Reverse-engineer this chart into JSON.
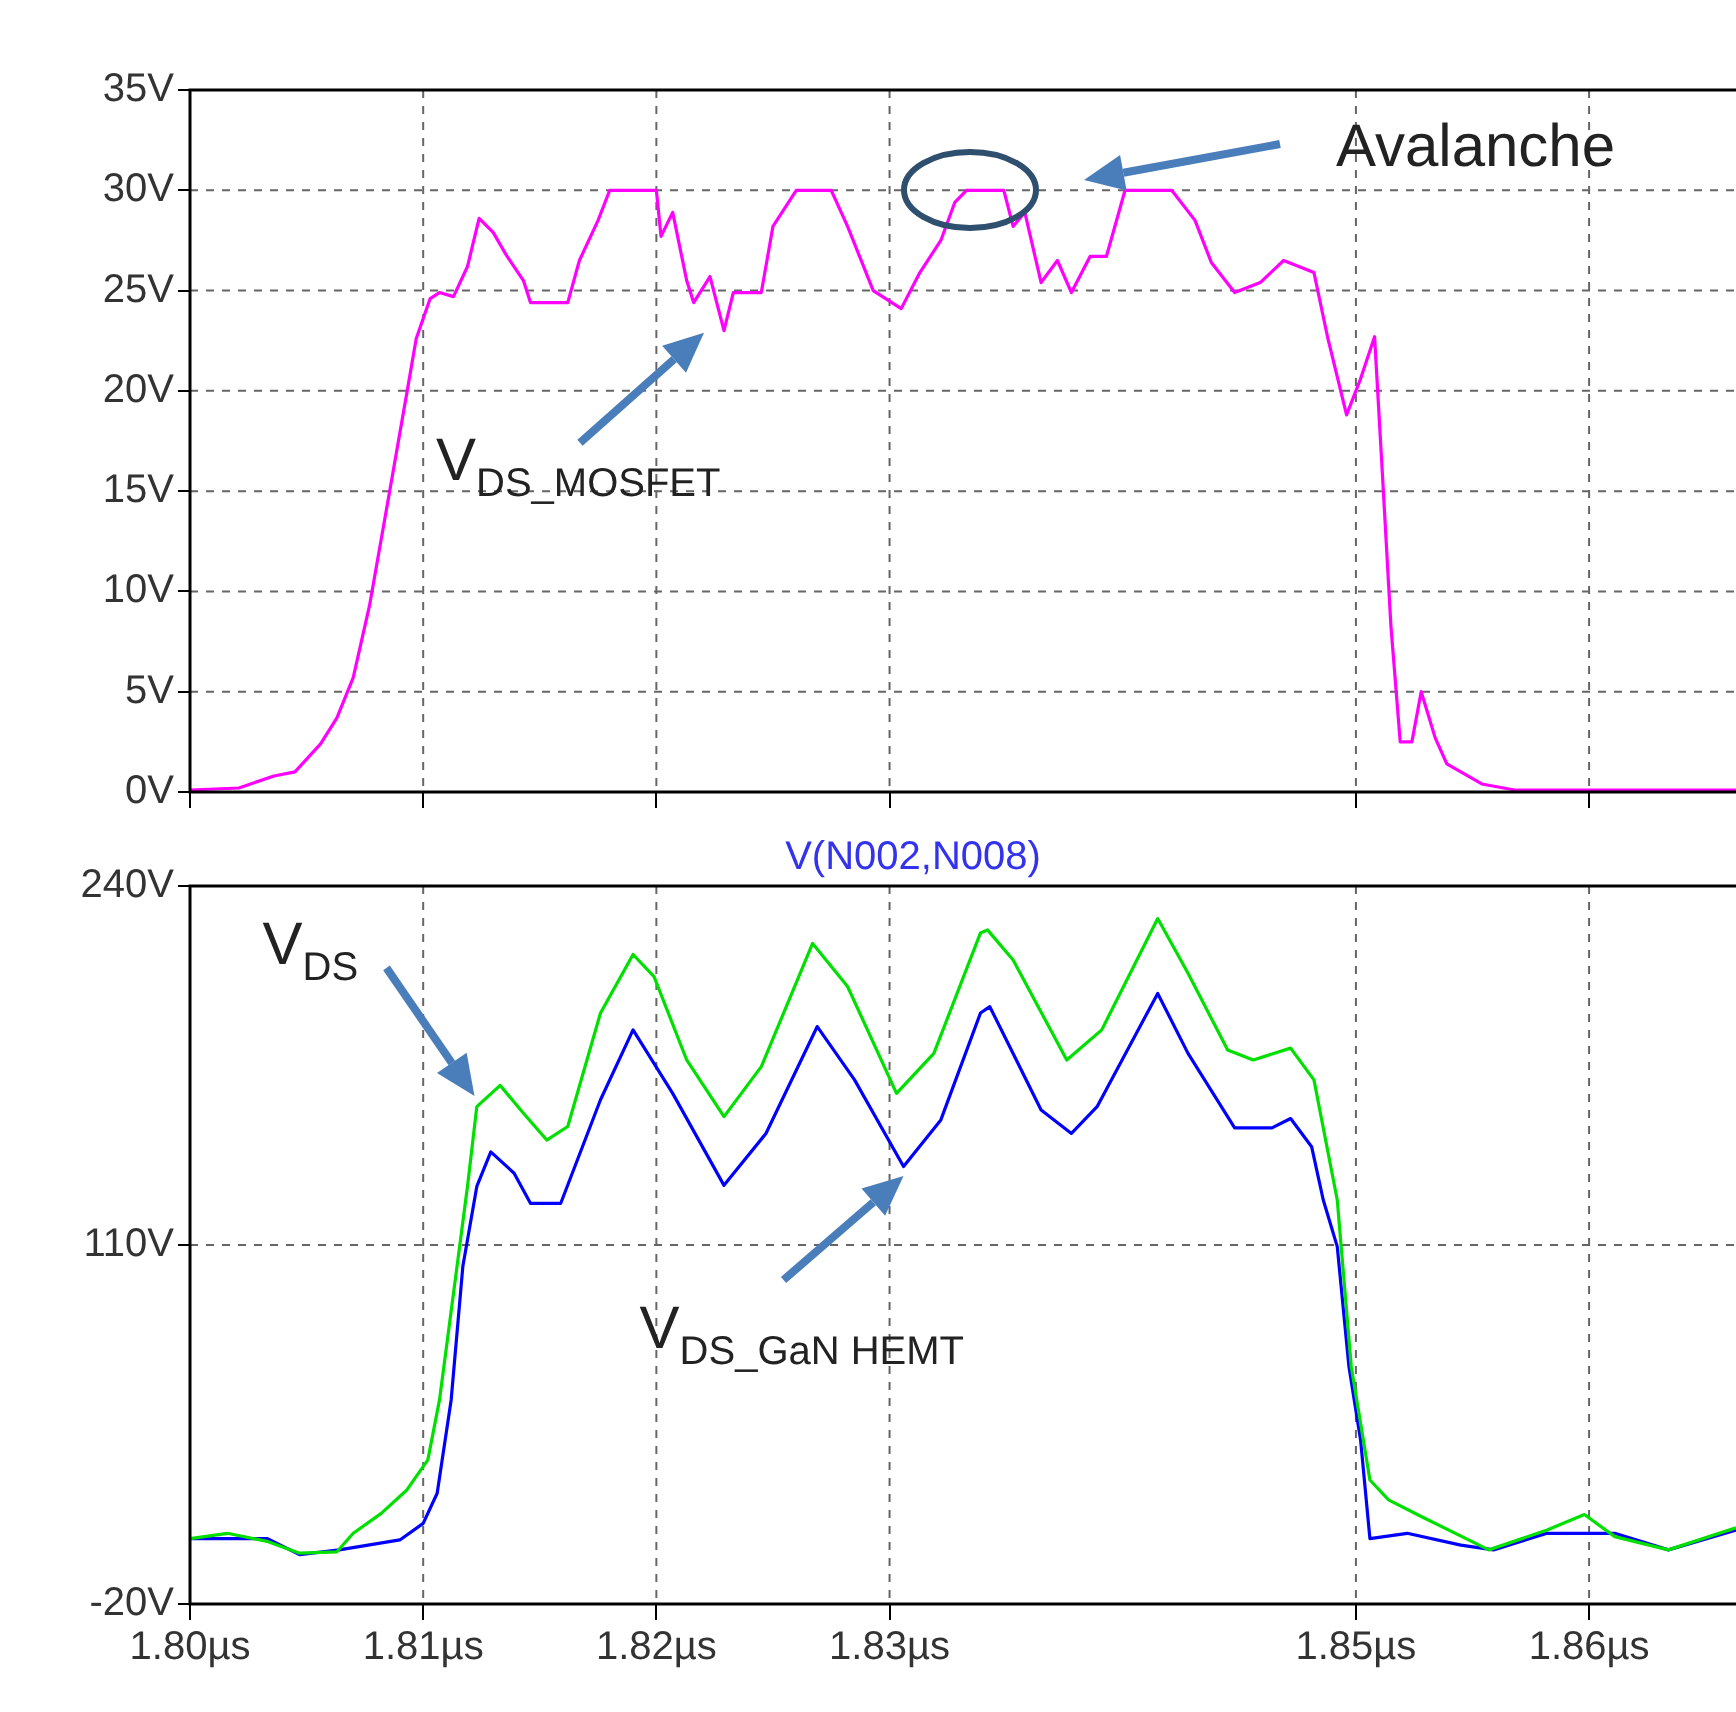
{
  "chart_data": [
    {
      "type": "line",
      "tick_labels": "y",
      "grid": true,
      "xlim": [
        1.8,
        1.8663
      ],
      "xticks": [
        {
          "value": 1.8,
          "label": null
        },
        {
          "value": 1.81,
          "label": null
        },
        {
          "value": 1.82,
          "label": null
        },
        {
          "value": 1.83,
          "label": null
        },
        {
          "value": 1.85,
          "label": null
        },
        {
          "value": 1.86,
          "label": null
        }
      ],
      "ylim": [
        0,
        35
      ],
      "yticks": [
        {
          "value": 0,
          "label": "0V"
        },
        {
          "value": 5,
          "label": "5V"
        },
        {
          "value": 10,
          "label": "10V"
        },
        {
          "value": 15,
          "label": "15V"
        },
        {
          "value": 20,
          "label": "20V"
        },
        {
          "value": 25,
          "label": "25V"
        },
        {
          "value": 30,
          "label": "30V"
        },
        {
          "value": 35,
          "label": "35V"
        }
      ],
      "series": [
        {
          "color": "#ff00ff",
          "x": [
            1.8,
            1.8021,
            1.8036,
            1.8045,
            1.8056,
            1.8063,
            1.807,
            1.8077,
            1.8082,
            1.8087,
            1.8093,
            1.8097,
            1.8103,
            1.8107,
            1.8113,
            1.8119,
            1.8124,
            1.813,
            1.8136,
            1.8143,
            1.8146,
            1.8162,
            1.8167,
            1.8175,
            1.818,
            1.82,
            1.8202,
            1.8207,
            1.8213,
            1.8216,
            1.8223,
            1.8229,
            1.8233,
            1.8245,
            1.825,
            1.826,
            1.8275,
            1.8282,
            1.8293,
            1.8305,
            1.8313,
            1.8322,
            1.8328,
            1.8333,
            1.8349,
            1.8353,
            1.8358,
            1.8365,
            1.8372,
            1.8378,
            1.8386,
            1.8393,
            1.8401,
            1.8421,
            1.8431,
            1.8438,
            1.8448,
            1.8459,
            1.8469,
            1.8482,
            1.8488,
            1.8496,
            1.8502,
            1.8508,
            1.8511,
            1.8515,
            1.8519,
            1.8524,
            1.8528,
            1.8534,
            1.8539,
            1.8554,
            1.8568,
            1.8663
          ],
          "values": [
            0.1,
            0.2,
            0.8,
            1.0,
            2.4,
            3.7,
            5.7,
            9.3,
            12.6,
            15.9,
            19.9,
            22.6,
            24.6,
            24.9,
            24.7,
            26.2,
            28.6,
            27.9,
            26.7,
            25.5,
            24.4,
            24.4,
            26.5,
            28.5,
            30.0,
            30.0,
            27.7,
            28.9,
            25.5,
            24.4,
            25.7,
            23.0,
            24.9,
            24.9,
            28.2,
            30.0,
            30.0,
            28.2,
            25.0,
            24.1,
            25.9,
            27.5,
            29.4,
            30.0,
            30.0,
            28.2,
            28.9,
            25.4,
            26.5,
            24.9,
            26.7,
            26.7,
            30.0,
            30.0,
            28.5,
            26.4,
            24.9,
            25.4,
            26.5,
            25.9,
            22.6,
            18.8,
            20.6,
            22.7,
            16.6,
            8.3,
            2.5,
            2.5,
            5.0,
            2.7,
            1.4,
            0.4,
            0.1,
            0.1
          ]
        }
      ],
      "annotations": [
        {
          "text": "V$_{DS_MOSFET}$",
          "x": 1.8229,
          "y": 23.0
        },
        "Avalanche"
      ]
    },
    {
      "type": "line",
      "title": "V(N002,N008)",
      "grid": true,
      "xlim": [
        1.8,
        1.8663
      ],
      "xticks": [
        {
          "value": 1.8,
          "label": "1.80µs"
        },
        {
          "value": 1.81,
          "label": "1.81µs"
        },
        {
          "value": 1.82,
          "label": "1.82µs"
        },
        {
          "value": 1.83,
          "label": "1.83µs"
        },
        {
          "value": 1.85,
          "label": "1.85µs"
        },
        {
          "value": 1.86,
          "label": "1.86µs"
        }
      ],
      "ylim": [
        -20,
        240
      ],
      "yticks": [
        {
          "value": -20,
          "label": "-20V"
        },
        {
          "value": 110,
          "label": "110V"
        },
        {
          "value": 240,
          "label": "240V"
        }
      ],
      "series": [
        {
          "color": "#00e000",
          "x": [
            1.8,
            1.8016,
            1.8033,
            1.8047,
            1.8063,
            1.807,
            1.8082,
            1.8093,
            1.8102,
            1.8107,
            1.8113,
            1.8119,
            1.8123,
            1.8133,
            1.8143,
            1.8153,
            1.8162,
            1.8176,
            1.819,
            1.8199,
            1.8213,
            1.8229,
            1.8245,
            1.8267,
            1.8282,
            1.8303,
            1.8319,
            1.8339,
            1.8342,
            1.8353,
            1.8376,
            1.8391,
            1.8415,
            1.8428,
            1.8445,
            1.8456,
            1.8472,
            1.8482,
            1.8492,
            1.8498,
            1.8506,
            1.8514,
            1.8528,
            1.8557,
            1.8582,
            1.8598,
            1.8611,
            1.8634,
            1.8663
          ],
          "values": [
            3.7,
            5.6,
            2.7,
            -1.6,
            -1.1,
            5.6,
            12.8,
            21.3,
            32.2,
            53.9,
            92.5,
            131.2,
            160.1,
            167.8,
            157.7,
            148.0,
            152.9,
            193.9,
            215.2,
            207.2,
            177.0,
            156.5,
            174.6,
            219.2,
            203.6,
            164.9,
            179.4,
            223.0,
            224.1,
            213.2,
            177.0,
            187.9,
            228.2,
            208.4,
            180.6,
            177.0,
            181.3,
            169.8,
            126.3,
            66.0,
            24.9,
            17.7,
            11.7,
            -0.4,
            6.8,
            12.4,
            4.4,
            -0.4,
            7.6
          ]
        },
        {
          "color": "#0000ff",
          "x": [
            1.8,
            1.8033,
            1.8047,
            1.8064,
            1.809,
            1.81,
            1.8106,
            1.8112,
            1.8117,
            1.8123,
            1.8129,
            1.8139,
            1.8146,
            1.8159,
            1.8176,
            1.819,
            1.8207,
            1.8229,
            1.8247,
            1.8269,
            1.8285,
            1.8306,
            1.8322,
            1.8339,
            1.8343,
            1.8365,
            1.8378,
            1.8389,
            1.8415,
            1.8428,
            1.8448,
            1.8464,
            1.8472,
            1.8481,
            1.8486,
            1.8492,
            1.8497,
            1.8502,
            1.8506,
            1.8522,
            1.8545,
            1.8559,
            1.8582,
            1.8611,
            1.8634,
            1.8663
          ],
          "values": [
            3.7,
            3.7,
            -2.1,
            -0.4,
            3.2,
            9.2,
            20.1,
            53.9,
            102.2,
            131.2,
            143.7,
            136.0,
            125.1,
            125.1,
            162.5,
            187.9,
            164.9,
            131.6,
            150.4,
            189.1,
            169.8,
            138.4,
            155.3,
            194.0,
            196.3,
            158.9,
            150.4,
            160.1,
            201.1,
            179.4,
            152.4,
            152.4,
            155.8,
            145.6,
            126.3,
            109.4,
            66.0,
            39.4,
            3.7,
            5.6,
            1.3,
            -0.4,
            5.6,
            5.6,
            -0.4,
            6.8
          ]
        }
      ],
      "annotations": [
        {
          "text": "V$_{DS}$",
          "x": 1.8122,
          "y": 164
        },
        {
          "text": "V$_{DS_GaN HEMT}$",
          "x": 1.8306,
          "y": 135
        }
      ]
    }
  ]
}
